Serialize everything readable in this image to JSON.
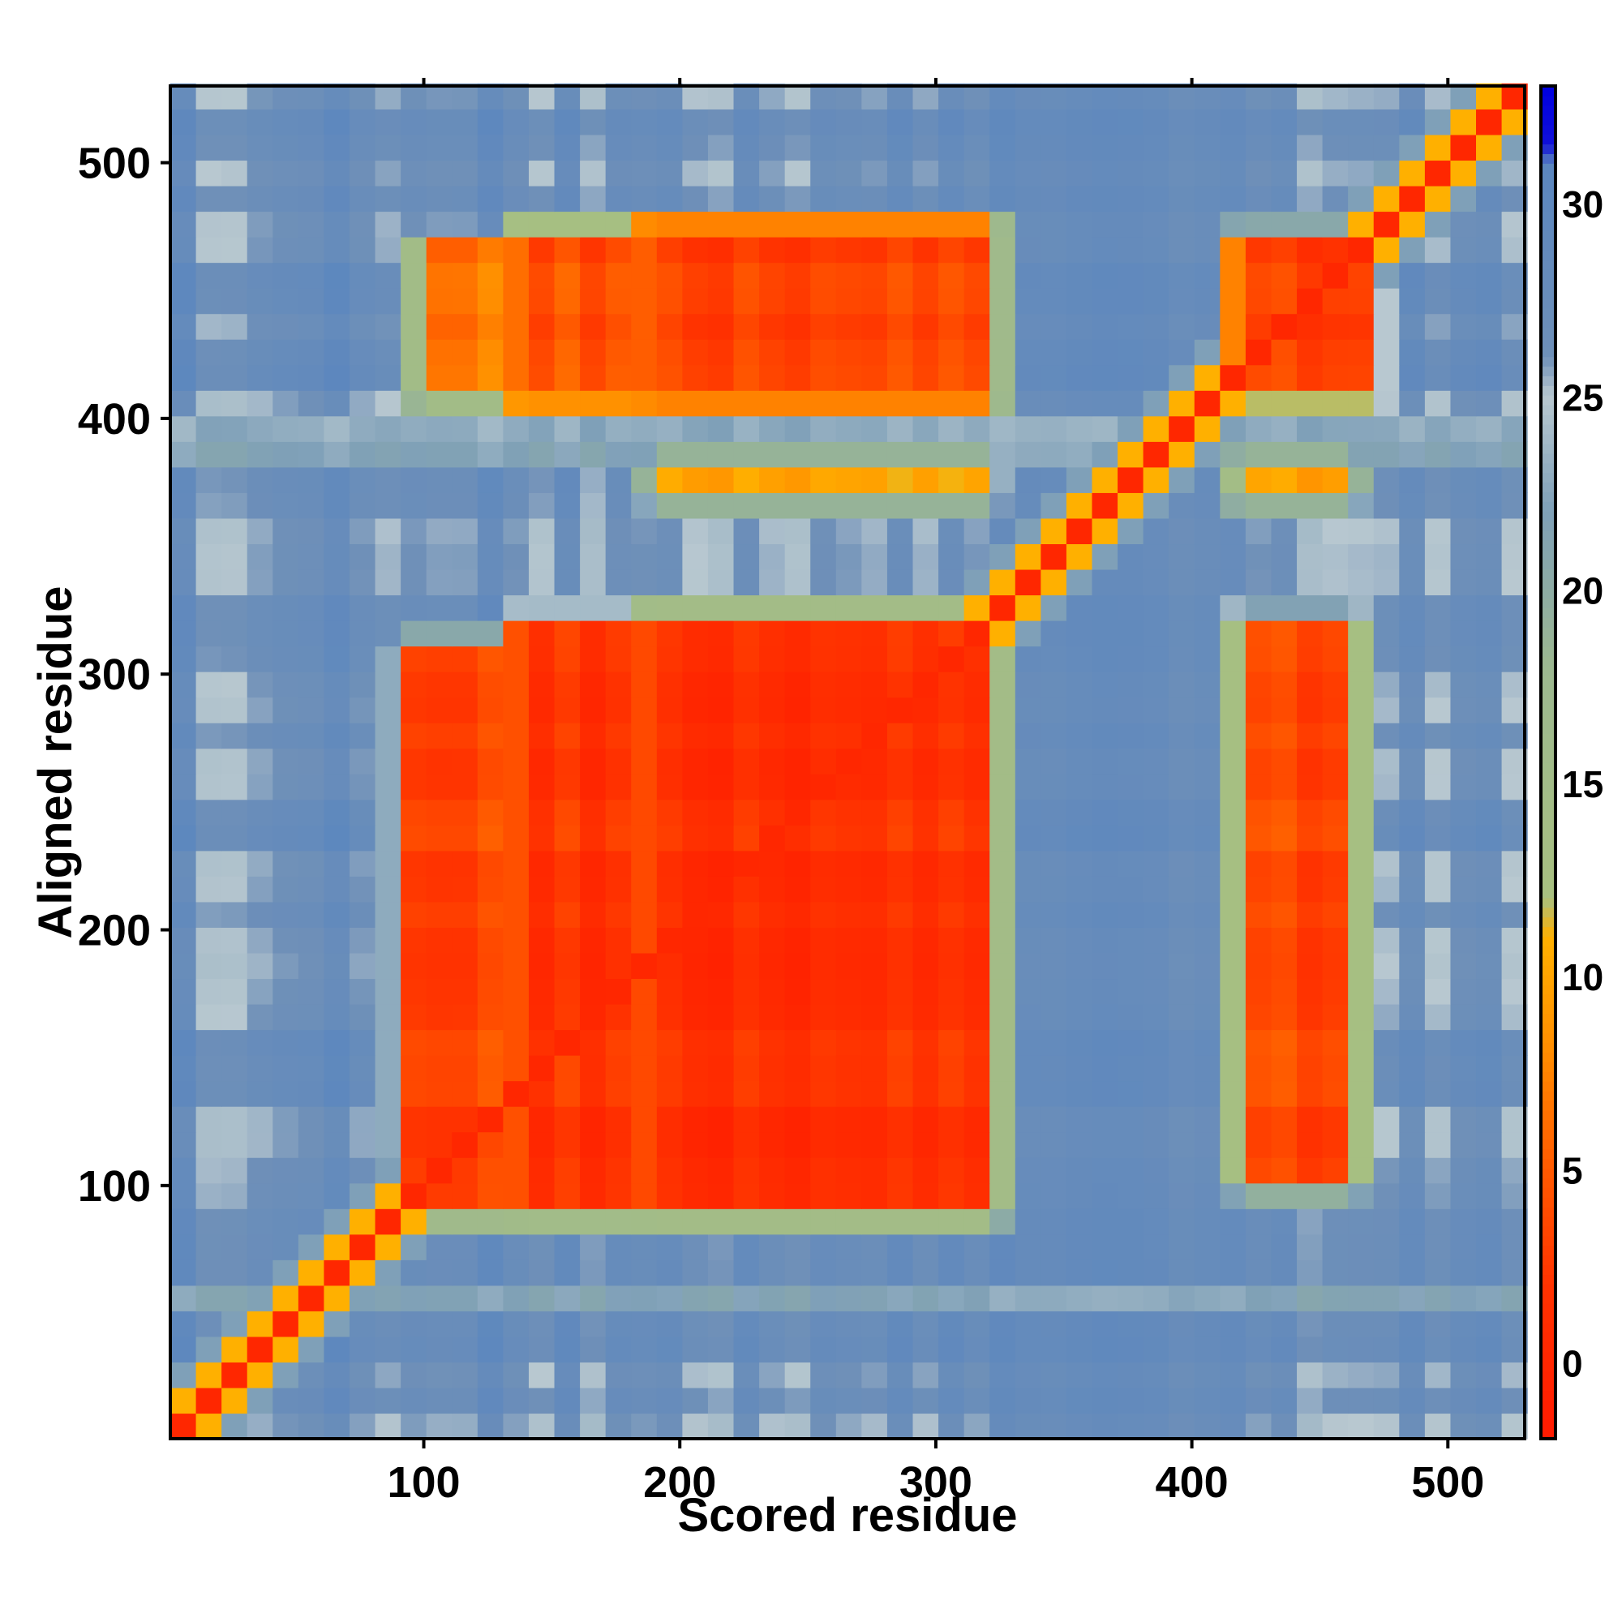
{
  "chart_data": {
    "type": "heatmap",
    "title": "",
    "xlabel": "Scored residue",
    "ylabel": "Aligned residue",
    "xlim": [
      1,
      530
    ],
    "ylim": [
      1,
      530
    ],
    "x_ticks": [
      100,
      200,
      300,
      400,
      500
    ],
    "y_ticks": [
      100,
      200,
      300,
      400,
      500
    ],
    "grid": false,
    "colorbar": {
      "range": [
        -2,
        33
      ],
      "ticks": [
        0,
        5,
        10,
        15,
        20,
        25,
        30
      ],
      "palette": [
        {
          "value": -2,
          "color": "#ff1a00"
        },
        {
          "value": 2,
          "color": "#ff3300"
        },
        {
          "value": 5,
          "color": "#ff5a00"
        },
        {
          "value": 8,
          "color": "#ff8c00"
        },
        {
          "value": 11,
          "color": "#ffb000"
        },
        {
          "value": 12,
          "color": "#a8c080"
        },
        {
          "value": 18,
          "color": "#9cb890"
        },
        {
          "value": 22,
          "color": "#7fa0b8"
        },
        {
          "value": 25,
          "color": "#b8c8d0"
        },
        {
          "value": 26,
          "color": "#6f90b8"
        },
        {
          "value": 31,
          "color": "#5a86bf"
        },
        {
          "value": 31.5,
          "color": "#1010d8"
        },
        {
          "value": 33,
          "color": "#0000e0"
        }
      ]
    },
    "background_value": 27,
    "diagonal_value": 0,
    "blocks": [
      {
        "x": [
          95,
          130
        ],
        "y": [
          92,
          308
        ],
        "value": 3
      },
      {
        "x": [
          137,
          183
        ],
        "y": [
          92,
          316
        ],
        "value": 2
      },
      {
        "x": [
          187,
          320
        ],
        "y": [
          92,
          320
        ],
        "value": 1.5
      },
      {
        "x": [
          420,
          462
        ],
        "y": [
          103,
          318
        ],
        "value": 4
      },
      {
        "x": [
          100,
          130
        ],
        "y": [
          410,
          466
        ],
        "value": 6
      },
      {
        "x": [
          137,
          183
        ],
        "y": [
          408,
          472
        ],
        "value": 4
      },
      {
        "x": [
          187,
          320
        ],
        "y": [
          408,
          474
        ],
        "value": 3
      },
      {
        "x": [
          418,
          466
        ],
        "y": [
          410,
          468
        ],
        "value": 3
      },
      {
        "x": [
          190,
          320
        ],
        "y": [
          370,
          382
        ],
        "value": 10
      },
      {
        "x": [
          418,
          462
        ],
        "y": [
          370,
          382
        ],
        "value": 10
      }
    ],
    "bands": [
      {
        "axis": "x",
        "range": [
          320,
          420
        ],
        "value": 29
      },
      {
        "axis": "y",
        "range": [
          50,
          60
        ],
        "value": 18
      },
      {
        "axis": "y",
        "range": [
          380,
          400
        ],
        "value": 18
      }
    ]
  }
}
